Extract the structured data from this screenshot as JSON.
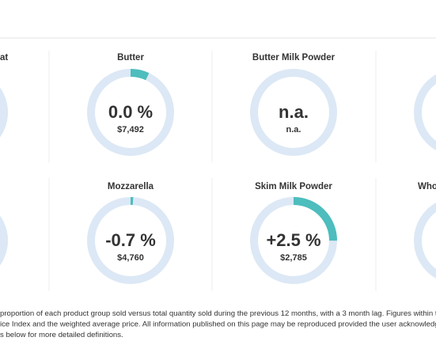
{
  "cards": [
    {
      "title": "at"
    },
    {
      "title": "Butter",
      "change": "0.0 %",
      "price": "$7,492",
      "share": 7
    },
    {
      "title": "Butter Milk Powder",
      "change": "n.a.",
      "price": "n.a."
    },
    {
      "title": "Mozzarella",
      "change": "-0.7 %",
      "price": "$4,760",
      "share": 1
    },
    {
      "title": "Skim Milk Powder",
      "change": "+2.5 %",
      "price": "$2,785",
      "share": 25
    },
    {
      "title": "Who"
    }
  ],
  "footer": [
    "proportion of each product group sold versus total quantity sold during the previous 12 months, with a 3 month lag. Figures within the",
    "ice Index and the weighted average price. All information published on this page may be reproduced provided the user acknowledges G",
    "s below for more detailed definitions."
  ]
}
